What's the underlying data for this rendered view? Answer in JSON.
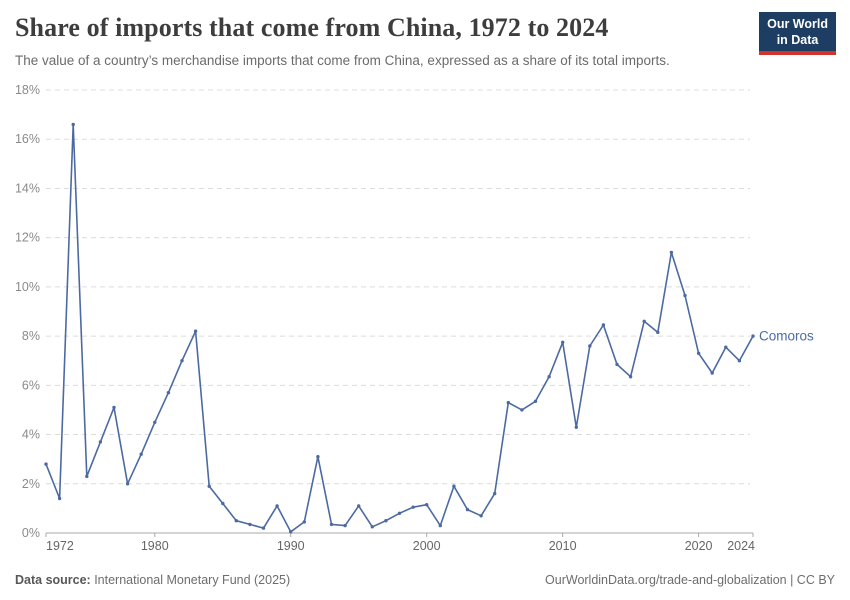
{
  "header": {
    "title": "Share of imports that come from China, 1972 to 2024",
    "subtitle": "The value of a country’s merchandise imports that come from China, expressed as a share of its total imports.",
    "logo": {
      "line1": "Our World",
      "line2": "in Data"
    }
  },
  "chart_data": {
    "type": "line",
    "title": "Share of imports that come from China, 1972 to 2024",
    "xlabel": "",
    "ylabel": "",
    "xlim": [
      1972,
      2024
    ],
    "ylim": [
      0,
      18
    ],
    "grid": "horizontal-dashed",
    "legend_position": "end-of-line-label",
    "x_ticks": [
      1972,
      1980,
      1990,
      2000,
      2010,
      2020,
      2024
    ],
    "y_ticks": [
      0,
      2,
      4,
      6,
      8,
      10,
      12,
      14,
      16,
      18
    ],
    "y_tick_suffix": "%",
    "series": [
      {
        "name": "Comoros",
        "color": "#4c6aa2",
        "x": [
          1972,
          1973,
          1974,
          1975,
          1976,
          1977,
          1978,
          1979,
          1980,
          1981,
          1982,
          1983,
          1984,
          1985,
          1986,
          1987,
          1988,
          1989,
          1990,
          1991,
          1992,
          1993,
          1994,
          1995,
          1996,
          1997,
          1998,
          1999,
          2000,
          2001,
          2002,
          2003,
          2004,
          2005,
          2006,
          2007,
          2008,
          2009,
          2010,
          2011,
          2012,
          2013,
          2014,
          2015,
          2016,
          2017,
          2018,
          2019,
          2020,
          2021,
          2022,
          2023,
          2024
        ],
        "values": [
          2.8,
          1.4,
          16.6,
          2.3,
          3.7,
          5.1,
          2.0,
          3.2,
          4.5,
          5.7,
          7.0,
          8.2,
          1.9,
          1.2,
          0.5,
          0.35,
          0.2,
          1.1,
          0.05,
          0.45,
          3.1,
          0.35,
          0.3,
          1.1,
          0.25,
          0.5,
          0.8,
          1.05,
          1.15,
          0.3,
          1.9,
          0.95,
          0.7,
          1.6,
          5.3,
          5.0,
          5.35,
          6.35,
          7.75,
          4.3,
          7.6,
          8.45,
          6.85,
          6.35,
          8.6,
          8.15,
          11.4,
          9.65,
          7.3,
          6.5,
          7.55,
          7.0,
          8.0
        ]
      }
    ],
    "colors": {
      "grid": "#dcdcdc",
      "axis": "#a8a8a8",
      "y_tick_label": "#8a8a8a",
      "x_tick_label": "#666666"
    }
  },
  "footer": {
    "datasource_label": "Data source:",
    "datasource_text": " International Monetary Fund (2025)",
    "license_text": "OurWorldinData.org/trade-and-globalization | CC BY"
  }
}
